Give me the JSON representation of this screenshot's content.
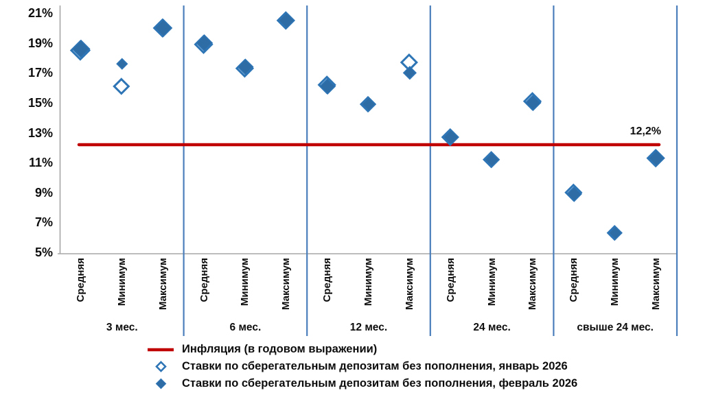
{
  "chart_data": {
    "type": "scatter",
    "title": "",
    "y_axis": {
      "min": 5,
      "max": 21,
      "tick_step": 2,
      "unit": "%",
      "tick_labels": [
        "21%",
        "19%",
        "17%",
        "15%",
        "13%",
        "11%",
        "9%",
        "7%",
        "5%"
      ]
    },
    "groups": [
      {
        "label": "3 мес."
      },
      {
        "label": "6 мес."
      },
      {
        "label": "12 мес."
      },
      {
        "label": "24 мес."
      },
      {
        "label": "свыше 24 мес."
      }
    ],
    "category_labels": [
      "Средняя",
      "Минимум",
      "Максимум"
    ],
    "series": [
      {
        "name": "Ставки по сберегательным депозитам без пополнения, январь 2026",
        "marker": "open-diamond",
        "values": [
          18.5,
          16.1,
          20.0,
          18.9,
          17.3,
          20.5,
          16.2,
          14.9,
          17.7,
          12.7,
          11.2,
          15.1,
          9.0,
          6.3,
          11.3
        ],
        "marker_sizes": [
          26,
          21,
          24,
          24,
          23,
          23,
          23,
          20,
          22,
          22,
          21,
          23,
          22,
          19,
          23
        ]
      },
      {
        "name": "Ставки по сберегательным депозитам без пополнения, февраль 2026",
        "marker": "filled-diamond",
        "values": [
          18.6,
          17.6,
          20.0,
          19.0,
          17.4,
          20.5,
          16.1,
          14.9,
          17.0,
          12.7,
          11.2,
          15.0,
          8.9,
          6.3,
          11.3
        ],
        "marker_sizes": [
          25,
          15,
          25,
          23,
          22,
          23,
          22,
          20,
          18,
          22,
          21,
          22,
          21,
          19,
          23
        ]
      }
    ],
    "reference_line": {
      "name": "Инфляция (в годовом выражении)",
      "value": 12.2,
      "label": "12,2%"
    },
    "legend_position": "bottom",
    "grid": false
  },
  "colors": {
    "marker_stroke": "#2E75B6",
    "marker_fill": "#2E6CA5",
    "open_marker_fill": "#FFFFFF",
    "reference_line": "#C00000",
    "separator_line": "#4A7EBB",
    "axis_line": "#A6A6A6",
    "text": "#0d0d0d"
  }
}
